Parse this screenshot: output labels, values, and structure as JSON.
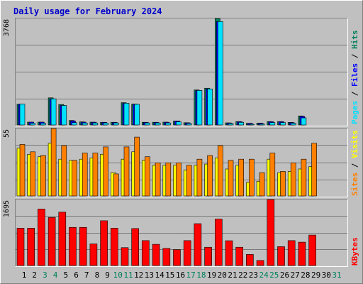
{
  "title": "Daily usage for February 2024",
  "colors": {
    "title": "#0000cc",
    "background": "#c0c0c0",
    "frame_light": "#ffffff",
    "frame_dark": "#808080",
    "grid": "#7a7a7a",
    "hits": "#00805c",
    "files": "#0000ff",
    "pages": "#00e0ff",
    "visits": "#ffff00",
    "sites": "#ff8000",
    "kbytes": "#ff0000",
    "weekend_label": "#00805c",
    "weekday_label": "#000000"
  },
  "x_labels": [
    "1",
    "2",
    "3",
    "4",
    "5",
    "6",
    "7",
    "8",
    "9",
    "10",
    "11",
    "12",
    "13",
    "14",
    "15",
    "16",
    "17",
    "18",
    "19",
    "20",
    "21",
    "22",
    "23",
    "24",
    "25",
    "26",
    "27",
    "28",
    "29",
    "30",
    "31"
  ],
  "weekend_days": [
    3,
    4,
    10,
    11,
    17,
    18,
    24,
    25,
    31
  ],
  "chart_data": [
    {
      "type": "bar",
      "name": "hits-files-pages",
      "y_max_label": "3768",
      "ylim": [
        0,
        3768
      ],
      "grid": true,
      "legend": [
        "Hits",
        "Files",
        "Pages"
      ],
      "legend_separator": " / ",
      "categories": [
        "1",
        "2",
        "3",
        "4",
        "5",
        "6",
        "7",
        "8",
        "9",
        "10",
        "11",
        "12",
        "13",
        "14",
        "15",
        "16",
        "17",
        "18",
        "19",
        "20",
        "21",
        "22",
        "23",
        "24",
        "25",
        "26",
        "27",
        "28",
        "29",
        "30",
        "31"
      ],
      "series": [
        {
          "name": "Hits",
          "values": [
            735,
            100,
            100,
            960,
            725,
            160,
            110,
            100,
            95,
            95,
            790,
            740,
            95,
            95,
            100,
            140,
            80,
            1240,
            1300,
            3765,
            75,
            120,
            60,
            65,
            120,
            120,
            90,
            320,
            0,
            0,
            0
          ]
        },
        {
          "name": "Files",
          "values": [
            735,
            100,
            100,
            925,
            690,
            140,
            100,
            95,
            90,
            90,
            770,
            730,
            90,
            90,
            95,
            140,
            75,
            1220,
            1275,
            3660,
            70,
            115,
            55,
            60,
            115,
            115,
            85,
            300,
            0,
            0,
            0
          ]
        },
        {
          "name": "Pages",
          "values": [
            735,
            60,
            60,
            925,
            690,
            80,
            70,
            70,
            70,
            70,
            770,
            730,
            70,
            70,
            70,
            110,
            50,
            1220,
            1275,
            3660,
            50,
            90,
            25,
            30,
            85,
            85,
            60,
            250,
            0,
            0,
            0
          ]
        }
      ]
    },
    {
      "type": "bar",
      "name": "visits-sites",
      "y_max_label": "55",
      "ylim": [
        0,
        55
      ],
      "grid": true,
      "legend": [
        "Visits",
        "Sites"
      ],
      "legend_separator": " / ",
      "categories": [
        "1",
        "2",
        "3",
        "4",
        "5",
        "6",
        "7",
        "8",
        "9",
        "10",
        "11",
        "12",
        "13",
        "14",
        "15",
        "16",
        "17",
        "18",
        "19",
        "20",
        "21",
        "22",
        "23",
        "24",
        "25",
        "26",
        "27",
        "28",
        "29",
        "30",
        "31"
      ],
      "series": [
        {
          "name": "Visits",
          "values": [
            39,
            34,
            32,
            43,
            30,
            29,
            30,
            31,
            34,
            19,
            30,
            36,
            29,
            25,
            25,
            25,
            21,
            25,
            26,
            31,
            22,
            25,
            11,
            12,
            30,
            19,
            20,
            22,
            24,
            0,
            0
          ]
        },
        {
          "name": "Sites",
          "values": [
            42,
            36,
            33,
            55,
            41,
            29,
            35,
            35,
            40,
            18,
            40,
            48,
            32,
            27,
            27,
            27,
            25,
            30,
            33,
            41,
            29,
            30,
            30,
            19,
            35,
            20,
            27,
            30,
            43,
            0,
            0
          ]
        }
      ]
    },
    {
      "type": "bar",
      "name": "kbytes",
      "y_max_label": "1695",
      "ylim": [
        0,
        1695
      ],
      "grid": true,
      "legend": [
        "KBytes"
      ],
      "categories": [
        "1",
        "2",
        "3",
        "4",
        "5",
        "6",
        "7",
        "8",
        "9",
        "10",
        "11",
        "12",
        "13",
        "14",
        "15",
        "16",
        "17",
        "18",
        "19",
        "20",
        "21",
        "22",
        "23",
        "24",
        "25",
        "26",
        "27",
        "28",
        "29",
        "30",
        "31"
      ],
      "series": [
        {
          "name": "KBytes",
          "values": [
            958,
            958,
            1450,
            1235,
            1370,
            980,
            980,
            555,
            1150,
            960,
            460,
            950,
            640,
            545,
            440,
            410,
            640,
            1075,
            470,
            1192,
            637,
            470,
            285,
            130,
            1695,
            485,
            640,
            600,
            782,
            0,
            0
          ]
        }
      ]
    }
  ]
}
